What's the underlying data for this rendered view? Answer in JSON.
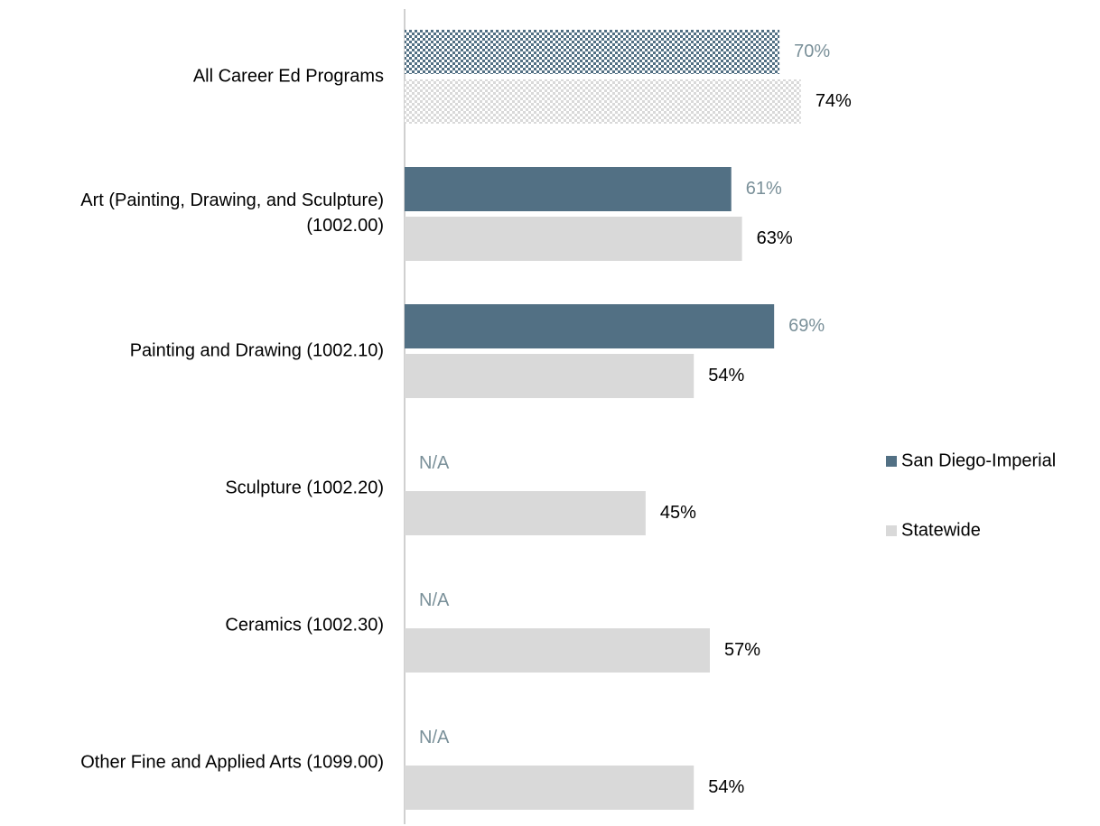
{
  "chart_data": {
    "type": "bar",
    "orientation": "horizontal",
    "categories": [
      "All Career Ed Programs",
      "Art (Painting, Drawing, and Sculpture) (1002.00)",
      "Painting and Drawing (1002.10)",
      "Sculpture (1002.20)",
      "Ceramics (1002.30)",
      "Other Fine and Applied Arts (1099.00)"
    ],
    "series": [
      {
        "name": "San Diego-Imperial",
        "color": "#527084",
        "label_color": "#7a9099",
        "values": [
          70,
          61,
          69,
          null,
          null,
          null
        ],
        "value_labels": [
          "70%",
          "61%",
          "69%",
          "N/A",
          "N/A",
          "N/A"
        ]
      },
      {
        "name": "Statewide",
        "color": "#d9d9d9",
        "label_color": "#000000",
        "values": [
          74,
          63,
          54,
          45,
          57,
          54
        ],
        "value_labels": [
          "74%",
          "63%",
          "54%",
          "45%",
          "57%",
          "54%"
        ]
      }
    ],
    "legend": "right"
  }
}
